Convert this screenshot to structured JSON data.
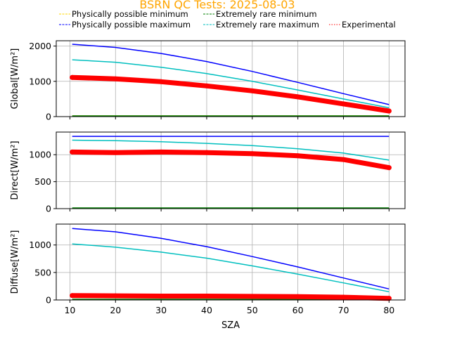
{
  "chart_data": {
    "type": "scatter",
    "title": "BSRN QC Tests: 2025-08-03",
    "title_color": "#ffa500",
    "legend": {
      "placement": "top",
      "entries": [
        {
          "name": "Physically possible minimum",
          "color": "#ffd700",
          "style": "dashed"
        },
        {
          "name": "Extremely rare minimum",
          "color": "#008000",
          "style": "dashed"
        },
        {
          "name": "Physically possible maximum",
          "color": "#0000ff",
          "style": "dashed"
        },
        {
          "name": "Extremely rare maximum",
          "color": "#00bfbf",
          "style": "dashed"
        },
        {
          "name": "Experimental",
          "color": "#ff0000",
          "style": "dotted"
        }
      ]
    },
    "xlabel": "SZA",
    "xlim": [
      7,
      83.5
    ],
    "xticks": [
      10,
      20,
      30,
      40,
      50,
      60,
      70,
      80
    ],
    "grid": true,
    "x": [
      10.5,
      20,
      30,
      40,
      50,
      60,
      70,
      80
    ],
    "panels": [
      {
        "ylabel": "Global[W/m²]",
        "ylim": [
          0,
          2150
        ],
        "yticks": [
          0,
          1000,
          2000
        ],
        "series": [
          {
            "name": "Physically possible minimum",
            "color": "#ffd700",
            "values": [
              -4,
              -4,
              -4,
              -4,
              -4,
              -4,
              -4,
              -4
            ]
          },
          {
            "name": "Extremely rare minimum",
            "color": "#008000",
            "values": [
              -2,
              -2,
              -2,
              -2,
              -2,
              -2,
              -2,
              -2
            ]
          },
          {
            "name": "Physically possible maximum",
            "color": "#0000ff",
            "values": [
              2050,
              1960,
              1790,
              1560,
              1280,
              970,
              650,
              340
            ]
          },
          {
            "name": "Extremely rare maximum",
            "color": "#00bfbf",
            "values": [
              1610,
              1540,
              1400,
              1220,
              1000,
              755,
              500,
              250
            ]
          },
          {
            "name": "Experimental",
            "color": "#ff0000",
            "values": [
              1110,
              1070,
              990,
              870,
              730,
              560,
              360,
              160
            ]
          }
        ]
      },
      {
        "ylabel": "Direct[W/m²]",
        "ylim": [
          0,
          1420
        ],
        "yticks": [
          0,
          500,
          1000
        ],
        "series": [
          {
            "name": "Extremely rare minimum",
            "color": "#008000",
            "values": [
              0,
              0,
              0,
              0,
              0,
              0,
              0,
              0
            ]
          },
          {
            "name": "Physically possible maximum",
            "color": "#0000ff",
            "values": [
              1340,
              1340,
              1340,
              1340,
              1340,
              1340,
              1340,
              1340
            ]
          },
          {
            "name": "Extremely rare maximum",
            "color": "#00bfbf",
            "values": [
              1270,
              1260,
              1240,
              1210,
              1170,
              1110,
              1030,
              900
            ]
          },
          {
            "name": "Experimental",
            "color": "#ff0000",
            "values": [
              1050,
              1040,
              1050,
              1040,
              1020,
              980,
              910,
              760
            ]
          }
        ]
      },
      {
        "ylabel": "Diffuse[W/m²]",
        "ylim": [
          0,
          1380
        ],
        "yticks": [
          0,
          500,
          1000
        ],
        "series": [
          {
            "name": "Extremely rare minimum",
            "color": "#008000",
            "values": [
              0,
              0,
              0,
              0,
              0,
              0,
              0,
              0
            ]
          },
          {
            "name": "Physically possible maximum",
            "color": "#0000ff",
            "values": [
              1300,
              1240,
              1120,
              970,
              790,
              600,
              400,
              200
            ]
          },
          {
            "name": "Extremely rare maximum",
            "color": "#00bfbf",
            "values": [
              1020,
              960,
              870,
              760,
              620,
              470,
              310,
              150
            ]
          },
          {
            "name": "Experimental",
            "color": "#ff0000",
            "values": [
              80,
              75,
              70,
              70,
              65,
              60,
              50,
              30
            ]
          }
        ]
      }
    ]
  }
}
